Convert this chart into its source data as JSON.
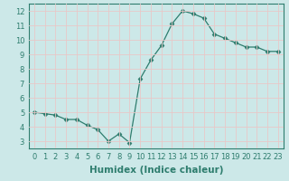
{
  "x": [
    0,
    1,
    2,
    3,
    4,
    5,
    6,
    7,
    8,
    9,
    10,
    11,
    12,
    13,
    14,
    15,
    16,
    17,
    18,
    19,
    20,
    21,
    22,
    23
  ],
  "y": [
    5.0,
    4.9,
    4.8,
    4.5,
    4.5,
    4.1,
    3.8,
    3.0,
    3.5,
    2.9,
    7.3,
    8.6,
    9.6,
    11.1,
    12.0,
    11.8,
    11.5,
    10.4,
    10.1,
    9.8,
    9.5,
    9.5,
    9.2,
    9.2
  ],
  "line_color": "#2e7d6e",
  "marker": "D",
  "marker_size": 2.5,
  "bg_color": "#cce8e8",
  "grid_color": "#e8c8c8",
  "xlabel": "Humidex (Indice chaleur)",
  "xlim": [
    -0.5,
    23.5
  ],
  "ylim": [
    2.5,
    12.5
  ],
  "yticks": [
    3,
    4,
    5,
    6,
    7,
    8,
    9,
    10,
    11,
    12
  ],
  "xticks": [
    0,
    1,
    2,
    3,
    4,
    5,
    6,
    7,
    8,
    9,
    10,
    11,
    12,
    13,
    14,
    15,
    16,
    17,
    18,
    19,
    20,
    21,
    22,
    23
  ],
  "tick_label_fontsize": 6,
  "xlabel_fontsize": 7.5
}
